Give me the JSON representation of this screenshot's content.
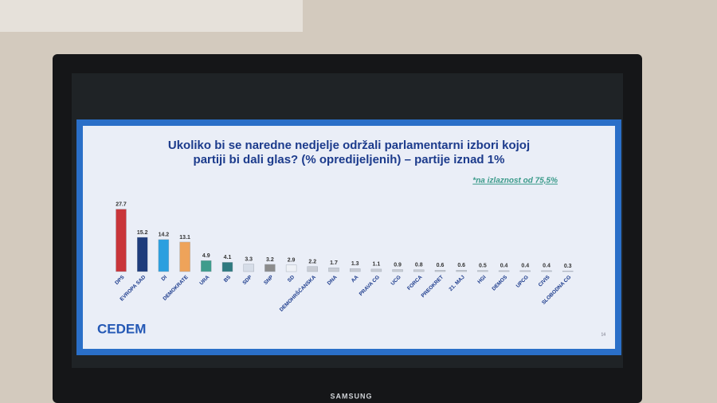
{
  "chart_data": {
    "type": "bar",
    "title": "Ukoliko bi se naredne nedjelje održali parlamentarni izbori kojoj",
    "subtitle": "partiji bi dali glas? (% opredijeljenih) – partije iznad 1%",
    "note": "*na izlaznost od 75,5%",
    "logo": "CEDEM",
    "page_number": "14",
    "brand": "SAMSUNG",
    "categories": [
      "DPS",
      "EVROPA SAD",
      "DI",
      "DEMOKRATE",
      "URA",
      "BS",
      "SDP",
      "SNP",
      "SD",
      "DEMOHRŠĆANSKA",
      "DNA",
      "AA",
      "PRAVA CG",
      "UCG",
      "FORCA",
      "PREOKRET",
      "21. MAJ",
      "HGI",
      "DEMOS",
      "UPCG",
      "CIVIS",
      "SLOBODNA CG"
    ],
    "values": [
      27.7,
      15.2,
      14.2,
      13.1,
      4.9,
      4.1,
      3.3,
      3.2,
      2.9,
      2.2,
      1.7,
      1.3,
      1.1,
      0.9,
      0.8,
      0.6,
      0.6,
      0.5,
      0.4,
      0.4,
      0.4,
      0.3
    ],
    "colors": [
      "#c9353a",
      "#1e3c7c",
      "#2b9fdf",
      "#eea35a",
      "#3f9c8c",
      "#2f7a80",
      "#d6dde8",
      "#8c8c8c",
      "#eef1f6",
      "#c8ccd4",
      "#c8ccd4",
      "#c8ccd4",
      "#c8ccd4",
      "#c8ccd4",
      "#c8ccd4",
      "#c8ccd4",
      "#c8ccd4",
      "#c8ccd4",
      "#c8ccd4",
      "#c8ccd4",
      "#c8ccd4",
      "#c8ccd4"
    ]
  }
}
